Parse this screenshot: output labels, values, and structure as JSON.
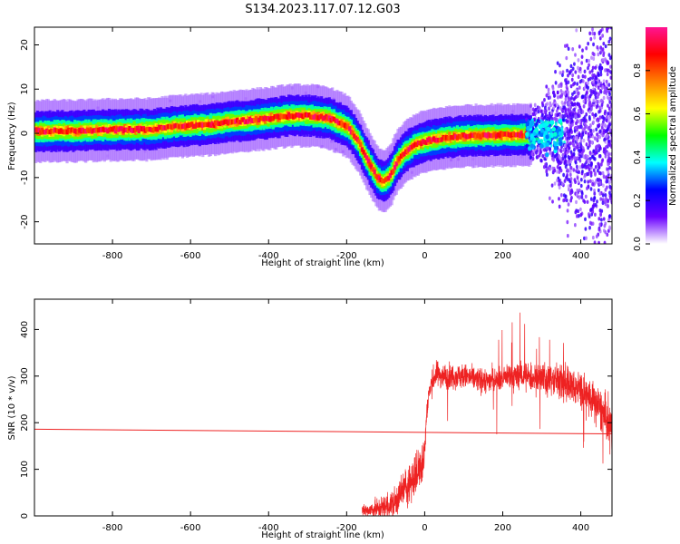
{
  "title": "S134.2023.117.07.12.G03",
  "chart_data": [
    {
      "type": "heatmap",
      "xlabel": "Height of straight line (km)",
      "ylabel": "Frequency (Hz)",
      "xlim": [
        -1000,
        480
      ],
      "ylim": [
        -25,
        24
      ],
      "x_ticks": [
        -800,
        -600,
        -400,
        -200,
        0,
        200,
        400
      ],
      "y_ticks": [
        -20,
        -10,
        0,
        10,
        20
      ],
      "colorbar": {
        "label": "Normalized spectral amplitude",
        "range": [
          0,
          1
        ],
        "ticks": [
          "0.0",
          "0.2",
          "0.4",
          "0.6",
          "0.8"
        ],
        "colors": [
          "#ffffff",
          "#6a00ff",
          "#0000ff",
          "#00ffff",
          "#00ff00",
          "#ffff00",
          "#ff8000",
          "#ff0000",
          "#ff1493"
        ]
      },
      "ridge": {
        "x": [
          -1000,
          -900,
          -800,
          -700,
          -650,
          -600,
          -550,
          -500,
          -450,
          -400,
          -350,
          -300,
          -250,
          -200,
          -175,
          -150,
          -125,
          -110,
          -90,
          -75,
          -50,
          -25,
          0,
          50,
          100,
          150,
          200,
          250,
          270
        ],
        "y": [
          0.5,
          0.5,
          0.8,
          0.9,
          1.5,
          1.8,
          2.0,
          2.6,
          3.0,
          3.4,
          4.0,
          4.0,
          3.5,
          1.5,
          -1.5,
          -6.0,
          -10.0,
          -11.0,
          -9.5,
          -6.5,
          -4.0,
          -2.5,
          -1.8,
          -1.0,
          -0.6,
          -0.5,
          -0.4,
          -0.3,
          -0.3
        ]
      },
      "noise_region": {
        "x": [
          260,
          480
        ],
        "y": [
          -25,
          24
        ]
      }
    },
    {
      "type": "line",
      "xlabel": "Height of straight line (km)",
      "ylabel": "SNR (10 * v/v)",
      "xlim": [
        -1000,
        480
      ],
      "ylim": [
        0,
        465
      ],
      "x_ticks": [
        -800,
        -600,
        -400,
        -200,
        0,
        200,
        400
      ],
      "y_ticks": [
        0,
        100,
        200,
        300,
        400
      ],
      "color": "#ee2222",
      "series": [
        {
          "x": [
            -160,
            -120,
            -80,
            -60,
            -40,
            -20,
            -10,
            0,
            5,
            10,
            20,
            30,
            50,
            100,
            150,
            200,
            250,
            300,
            350,
            400,
            450,
            480
          ],
          "y": [
            10,
            15,
            25,
            50,
            70,
            90,
            110,
            140,
            220,
            260,
            290,
            305,
            300,
            300,
            290,
            295,
            300,
            295,
            290,
            270,
            230,
            185
          ]
        },
        {
          "x": [
            -1000,
            480
          ],
          "y": [
            186,
            176
          ]
        }
      ]
    }
  ]
}
